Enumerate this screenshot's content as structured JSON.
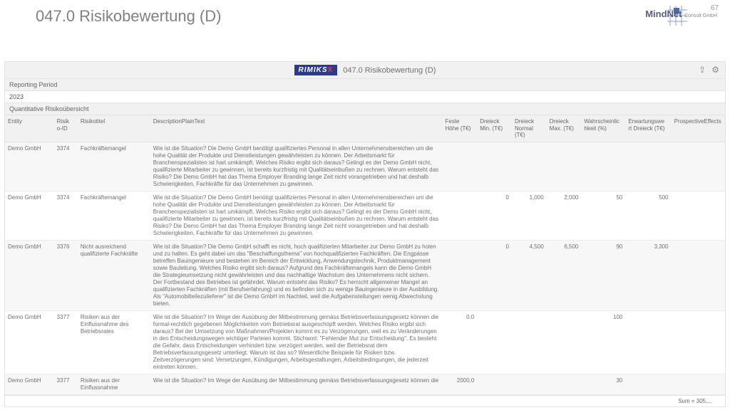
{
  "slide": {
    "title": "047.0 Risikobewertung (D)",
    "number": "67",
    "brand": "MindNet",
    "brand_sub": "Consult GmbH"
  },
  "report": {
    "logo_text": "RIMIKS",
    "logo_x": "X",
    "title": "047.0 Risikobewertung (D)",
    "reporting_period_label": "Reporting Period",
    "reporting_period_value": "2023",
    "section_label": "Quantitative Risikoübersicht",
    "footer_sum": "Sum = 305,..."
  },
  "columns": {
    "entity": "Entity",
    "risk_id": "Risik\no-ID",
    "risk_title": "Risikotitel",
    "desc": "DescriptionPlainText",
    "feste_hohe": "Feste Höhe (T€)",
    "dreieck_min": "Dreieck Min. (T€)",
    "dreieck_normal": "Dreieck Normal (T€)",
    "dreieck_max": "Dreieck Max. (T€)",
    "prob": "Wahrscheinlic hkeit (%)",
    "erw": "Erwartungswe rt Dreieck (T€)",
    "prospect": "ProspectiveEffects"
  },
  "rows": [
    {
      "entity": "Demo GmbH",
      "risk_id": "3374",
      "title": "Fachkräftemangel",
      "desc": "Wie ist die Situation? Die Demo GmbH benötigt qualifiziertes Personal in allen Unternehmensbereichen um die hohe Qualität der Produkte und Dienstleistungen gewährleisten zu können. Der Arbeitsmarkt für Branchenspezialisten ist hart umkämpft. Welches Risiko ergibt sich daraus? Gelingt es der Demo GmbH nicht, qualifizierte Mitarbeiter zu gewinnen, ist bereits kurzfristig mit Qualitätseinbußen zu rechnen. Warum entsteht das Risiko? Die Demo GmbH hat das Thema Employer Branding lange Zeit nicht vorangetrieben und hat deshalb Schwierigkeiten, Fachkräfte für das Unternehmen zu gewinnen.",
      "fh": "",
      "dmin": "",
      "dnorm": "",
      "dmax": "",
      "prob": "",
      "erw": "",
      "prosp": ""
    },
    {
      "entity": "Demo GmbH",
      "risk_id": "3374",
      "title": "Fachkräftemangel",
      "desc": "Wie ist die Situation? Die Demo GmbH benötigt qualifiziertes Personal in allen Unternehmensbereichen um die hohe Qualität der Produkte und Dienstleistungen gewährleisten zu können. Der Arbeitsmarkt für Branchenspezialisten ist hart umkämpft. Welches Risiko ergibt sich daraus? Gelingt es der Demo GmbH nicht, qualifizierte Mitarbeiter zu gewinnen, ist bereits kurzfristig mit Qualitätseinbußen zu rechnen. Warum entsteht das Risiko? Die Demo GmbH hat das Thema Employer Branding lange Zeit nicht vorangetrieben und hat deshalb Schwierigkeiten, Fachkräfte für das Unternehmen zu gewinnen.",
      "fh": "",
      "dmin": "0",
      "dnorm": "1,000",
      "dmax": "2,000",
      "prob": "50",
      "erw": "500",
      "prosp": ""
    },
    {
      "entity": "Demo GmbH",
      "risk_id": "3376",
      "title": "Nicht ausreichend qualifizierte Fachkräfte",
      "desc": "Wie ist die Situation? Die Demo GmbH schafft es nicht, hoch qualifizierten Mitarbeiter zur Demo GmbH zu holen und zu halten. Es geht dabei um das \"Beschaffungsthema\" von hochqualifizierten Fachkräften. Die Engpässe betreffen Bauingenieure und bestehen im Bereich der Entwicklung, Anwendungstechnik, Produktmanagement sowie Bauleitung. Welches Risiko ergibt sich daraus? Aufgrund des Fachkräftemangels kann die Demo GmbH die Strategieumsetzung nicht gewährleisten und das nachhaltige Wachstum des Unternehmens nicht sichern. Der Fortbestand des Betriebes ist gefährdet. Warum entsteht das Risiko? Es herrscht allgemeiner Mangel an qualifizierten Fachkräften (mit Berufserfahrung) und es befinden sich zu wenige Bauingenieure in der Ausbildung. Als \"Automobilteilezulieferer\" ist die Demo GmbH im Nachteil, weil die Aufgabenstellungen wenig Abwechslung bieten.",
      "fh": "",
      "dmin": "0",
      "dnorm": "4,500",
      "dmax": "6,500",
      "prob": "90",
      "erw": "3,300",
      "prosp": ""
    },
    {
      "entity": "Demo GmbH",
      "risk_id": "3377",
      "title": "Risiken aus der Einflussnahme des Betriebsrates",
      "desc": "Wie ist die Situation? Im Wege der Ausübung der Mitbestimmung gemäss Betriebsverfassungsgesetz können die formal-rechtlich gegebenen Möglichkeiten vom Betriebsrat ausgeschöpft werden. Welches Risiko ergibt sich daraus? Bei der Umsetzung von Maßnahmen/Projekten kommt es zu Verzögerungen, weil es zu Veränderungen in den Entscheidungswegen wichtiger Parteien kommt. Stichwort: \"Fehlender Mut zur Entscheidung\". Es besteht die Gefahr, dass Entscheidungen verhindert bzw. verzögert werden, weil der Betriebsrat dem Betriebsverfassungsgesetz unterliegt. Warum ist das so? Wesentliche Beispiele für Risiken bzw. Zeitverzögerungen sind: Versetzungen, Kündigungen, Arbeitsgestaltungen, Arbeitsbedingungen, die jederzeit eintreten können.",
      "fh": "0.0",
      "dmin": "",
      "dnorm": "",
      "dmax": "",
      "prob": "100",
      "erw": "",
      "prosp": ""
    },
    {
      "entity": "Demo GmbH",
      "risk_id": "3377",
      "title": "Risiken aus der Einflussnahme",
      "desc": "Wie ist die Situation? Im Wege der Ausübung der Mitbestimmung gemäss Betriebsverfassungsgesetz können die",
      "fh": "2000.0",
      "dmin": "",
      "dnorm": "",
      "dmax": "",
      "prob": "30",
      "erw": "",
      "prosp": ""
    }
  ]
}
